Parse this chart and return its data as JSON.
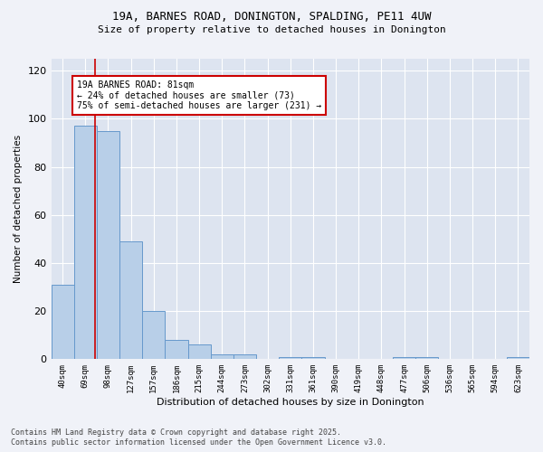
{
  "title_line1": "19A, BARNES ROAD, DONINGTON, SPALDING, PE11 4UW",
  "title_line2": "Size of property relative to detached houses in Donington",
  "xlabel": "Distribution of detached houses by size in Donington",
  "ylabel": "Number of detached properties",
  "categories": [
    "40sqm",
    "69sqm",
    "98sqm",
    "127sqm",
    "157sqm",
    "186sqm",
    "215sqm",
    "244sqm",
    "273sqm",
    "302sqm",
    "331sqm",
    "361sqm",
    "390sqm",
    "419sqm",
    "448sqm",
    "477sqm",
    "506sqm",
    "536sqm",
    "565sqm",
    "594sqm",
    "623sqm"
  ],
  "values": [
    31,
    97,
    95,
    49,
    20,
    8,
    6,
    2,
    2,
    0,
    1,
    1,
    0,
    0,
    0,
    1,
    1,
    0,
    0,
    0,
    1
  ],
  "bar_color": "#b8cfe8",
  "bar_edge_color": "#6699cc",
  "background_color": "#dde4f0",
  "plot_bg_color": "#dde4f0",
  "grid_color": "#ffffff",
  "vline_x": 1.41,
  "vline_color": "#cc0000",
  "annotation_text": "19A BARNES ROAD: 81sqm\n← 24% of detached houses are smaller (73)\n75% of semi-detached houses are larger (231) →",
  "annotation_box_color": "#ffffff",
  "annotation_box_edge": "#cc0000",
  "ylim": [
    0,
    125
  ],
  "yticks": [
    0,
    20,
    40,
    60,
    80,
    100,
    120
  ],
  "footnote_line1": "Contains HM Land Registry data © Crown copyright and database right 2025.",
  "footnote_line2": "Contains public sector information licensed under the Open Government Licence v3.0."
}
